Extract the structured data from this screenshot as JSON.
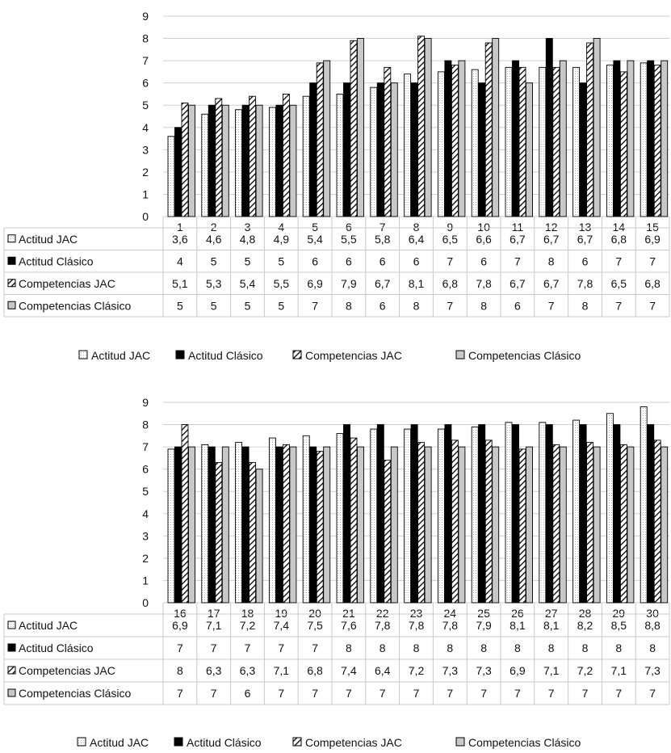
{
  "chart_data": [
    {
      "type": "bar",
      "title": "",
      "xlabel": "",
      "ylabel": "",
      "ylim": [
        0,
        9
      ],
      "yticks": [
        0,
        1,
        2,
        3,
        4,
        5,
        6,
        7,
        8,
        9
      ],
      "grid": true,
      "legend_placement": "bottom",
      "data_table": true,
      "categories": [
        "1",
        "2",
        "3",
        "4",
        "5",
        "6",
        "7",
        "8",
        "9",
        "10",
        "11",
        "12",
        "13",
        "14",
        "15"
      ],
      "series": [
        {
          "name": "Actitud JAC",
          "fill": "white",
          "values": [
            3.6,
            4.6,
            4.8,
            4.9,
            5.4,
            5.5,
            5.8,
            6.4,
            6.5,
            6.6,
            6.7,
            6.7,
            6.7,
            6.8,
            6.9
          ],
          "labels": [
            "3,6",
            "4,6",
            "4,8",
            "4,9",
            "5,4",
            "5,5",
            "5,8",
            "6,4",
            "6,5",
            "6,6",
            "6,7",
            "6,7",
            "6,7",
            "6,8",
            "6,9"
          ]
        },
        {
          "name": "Actitud Clásico",
          "fill": "black",
          "values": [
            4,
            5,
            5,
            5,
            6,
            6,
            6,
            6,
            7,
            6,
            7,
            8,
            6,
            7,
            7
          ],
          "labels": [
            "4",
            "5",
            "5",
            "5",
            "6",
            "6",
            "6",
            "6",
            "7",
            "6",
            "7",
            "8",
            "6",
            "7",
            "7"
          ]
        },
        {
          "name": "Competencias JAC",
          "fill": "hatch",
          "values": [
            5.1,
            5.3,
            5.4,
            5.5,
            6.9,
            7.9,
            6.7,
            8.1,
            6.8,
            7.8,
            6.7,
            6.7,
            7.8,
            6.5,
            6.8
          ],
          "labels": [
            "5,1",
            "5,3",
            "5,4",
            "5,5",
            "6,9",
            "7,9",
            "6,7",
            "8,1",
            "6,8",
            "7,8",
            "6,7",
            "6,7",
            "7,8",
            "6,5",
            "6,8"
          ]
        },
        {
          "name": "Competencias Clásico",
          "fill": "grey",
          "values": [
            5,
            5,
            5,
            5,
            7,
            8,
            6,
            8,
            7,
            8,
            6,
            7,
            8,
            7,
            7
          ],
          "labels": [
            "5",
            "5",
            "5",
            "5",
            "7",
            "8",
            "6",
            "8",
            "7",
            "8",
            "6",
            "7",
            "8",
            "7",
            "7"
          ]
        }
      ]
    },
    {
      "type": "bar",
      "title": "",
      "xlabel": "",
      "ylabel": "",
      "ylim": [
        0,
        9
      ],
      "yticks": [
        0,
        1,
        2,
        3,
        4,
        5,
        6,
        7,
        8,
        9
      ],
      "grid": true,
      "legend_placement": "bottom",
      "data_table": true,
      "categories": [
        "16",
        "17",
        "18",
        "19",
        "20",
        "21",
        "22",
        "23",
        "24",
        "25",
        "26",
        "27",
        "28",
        "29",
        "30"
      ],
      "series": [
        {
          "name": "Actitud JAC",
          "fill": "white",
          "values": [
            6.9,
            7.1,
            7.2,
            7.4,
            7.5,
            7.6,
            7.8,
            7.8,
            7.8,
            7.9,
            8.1,
            8.1,
            8.2,
            8.5,
            8.8
          ],
          "labels": [
            "6,9",
            "7,1",
            "7,2",
            "7,4",
            "7,5",
            "7,6",
            "7,8",
            "7,8",
            "7,8",
            "7,9",
            "8,1",
            "8,1",
            "8,2",
            "8,5",
            "8,8"
          ]
        },
        {
          "name": "Actitud Clásico",
          "fill": "black",
          "values": [
            7,
            7,
            7,
            7,
            7,
            8,
            8,
            8,
            8,
            8,
            8,
            8,
            8,
            8,
            8
          ],
          "labels": [
            "7",
            "7",
            "7",
            "7",
            "7",
            "8",
            "8",
            "8",
            "8",
            "8",
            "8",
            "8",
            "8",
            "8",
            "8"
          ]
        },
        {
          "name": "Competencias JAC",
          "fill": "hatch",
          "values": [
            8,
            6.3,
            6.3,
            7.1,
            6.8,
            7.4,
            6.4,
            7.2,
            7.3,
            7.3,
            6.9,
            7.1,
            7.2,
            7.1,
            7.3
          ],
          "labels": [
            "8",
            "6,3",
            "6,3",
            "7,1",
            "6,8",
            "7,4",
            "6,4",
            "7,2",
            "7,3",
            "7,3",
            "6,9",
            "7,1",
            "7,2",
            "7,1",
            "7,3"
          ]
        },
        {
          "name": "Competencias Clásico",
          "fill": "grey",
          "values": [
            7,
            7,
            6,
            7,
            7,
            7,
            7,
            7,
            7,
            7,
            7,
            7,
            7,
            7,
            7
          ],
          "labels": [
            "7",
            "7",
            "6",
            "7",
            "7",
            "7",
            "7",
            "7",
            "7",
            "7",
            "7",
            "7",
            "7",
            "7",
            "7"
          ]
        }
      ]
    }
  ]
}
